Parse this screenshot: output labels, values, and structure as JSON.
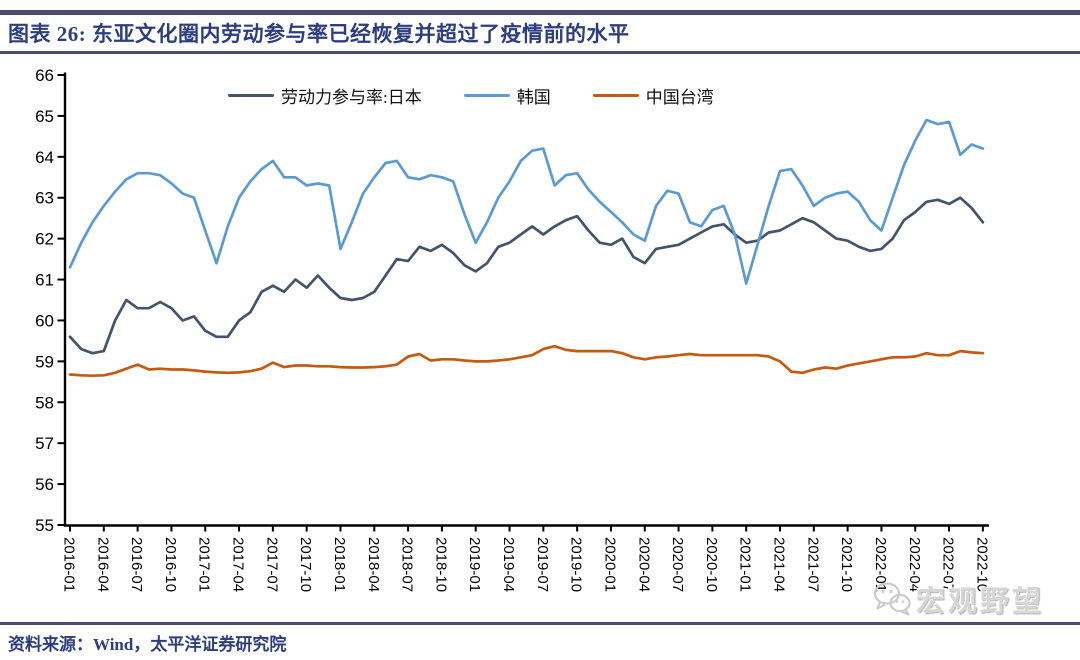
{
  "header": {
    "title": "图表 26:  东亚文化圈内劳动参与率已经恢复并超过了疫情前的水平"
  },
  "footer": {
    "source": "资料来源：Wind，太平洋证券研究院"
  },
  "watermark": {
    "icon": "wechat-icon",
    "text": "宏观野望"
  },
  "colors": {
    "japan": "#44546A",
    "korea": "#5B9BD5",
    "taiwan": "#C55A11",
    "rule": "#4b4b78",
    "title_text": "#2d3e80",
    "axis": "#000000",
    "watermark": "#d6d6d6"
  },
  "chart_data": {
    "type": "line",
    "title": "东亚文化圈内劳动参与率已经恢复并超过了疫情前的水平",
    "x_frequency": "monthly",
    "x_start": "2016-01",
    "x_end": "2022-10",
    "ylim": [
      55,
      66
    ],
    "grid": false,
    "legend_position": "top-center",
    "y_ticks": [
      66,
      65,
      64,
      63,
      62,
      61,
      60,
      59,
      58,
      57,
      56,
      55
    ],
    "x_tick_labels": [
      "2016-01",
      "2016-04",
      "2016-07",
      "2016-10",
      "2017-01",
      "2017-04",
      "2017-07",
      "2017-10",
      "2018-01",
      "2018-04",
      "2018-07",
      "2018-10",
      "2019-01",
      "2019-04",
      "2019-07",
      "2019-10",
      "2020-01",
      "2020-04",
      "2020-07",
      "2020-10",
      "2021-01",
      "2021-04",
      "2021-07",
      "2021-10",
      "2022-01",
      "2022-04",
      "2022-07",
      "2022-10"
    ],
    "series": [
      {
        "name": "劳动力参与率:日本",
        "color_key": "japan",
        "values": [
          59.6,
          59.3,
          59.2,
          59.25,
          60.0,
          60.5,
          60.3,
          60.3,
          60.45,
          60.3,
          60.0,
          60.1,
          59.75,
          59.6,
          59.6,
          60.0,
          60.2,
          60.7,
          60.85,
          60.7,
          61.0,
          60.8,
          61.1,
          60.8,
          60.55,
          60.5,
          60.55,
          60.7,
          61.1,
          61.5,
          61.45,
          61.8,
          61.7,
          61.85,
          61.65,
          61.35,
          61.2,
          61.4,
          61.8,
          61.9,
          62.1,
          62.3,
          62.1,
          62.3,
          62.45,
          62.55,
          62.2,
          61.9,
          61.85,
          62.0,
          61.55,
          61.4,
          61.75,
          61.8,
          61.85,
          62.0,
          62.15,
          62.3,
          62.35,
          62.1,
          61.9,
          61.95,
          62.15,
          62.2,
          62.35,
          62.5,
          62.4,
          62.2,
          62.0,
          61.95,
          61.8,
          61.7,
          61.75,
          62.0,
          62.45,
          62.65,
          62.9,
          62.95,
          62.85,
          63.0,
          62.75,
          62.4
        ]
      },
      {
        "name": "韩国",
        "color_key": "korea",
        "values": [
          61.3,
          61.9,
          62.4,
          62.8,
          63.15,
          63.45,
          63.6,
          63.6,
          63.55,
          63.35,
          63.1,
          63.0,
          62.2,
          61.4,
          62.3,
          63.0,
          63.4,
          63.7,
          63.9,
          63.5,
          63.5,
          63.3,
          63.35,
          63.3,
          61.75,
          62.4,
          63.1,
          63.5,
          63.85,
          63.9,
          63.5,
          63.45,
          63.55,
          63.5,
          63.4,
          62.6,
          61.9,
          62.4,
          63.0,
          63.4,
          63.9,
          64.15,
          64.2,
          63.3,
          63.55,
          63.6,
          63.2,
          62.9,
          62.65,
          62.4,
          62.1,
          61.95,
          62.8,
          63.17,
          63.1,
          62.4,
          62.3,
          62.7,
          62.8,
          62.1,
          60.9,
          61.85,
          62.8,
          63.65,
          63.7,
          63.3,
          62.8,
          63.0,
          63.1,
          63.15,
          62.9,
          62.45,
          62.2,
          63.0,
          63.8,
          64.4,
          64.9,
          64.8,
          64.85,
          64.05,
          64.3,
          64.2
        ]
      },
      {
        "name": "中国台湾",
        "color_key": "taiwan",
        "values": [
          58.68,
          58.66,
          58.65,
          58.66,
          58.72,
          58.82,
          58.92,
          58.8,
          58.82,
          58.8,
          58.8,
          58.78,
          58.75,
          58.73,
          58.72,
          58.73,
          58.76,
          58.82,
          58.97,
          58.86,
          58.9,
          58.9,
          58.88,
          58.88,
          58.86,
          58.85,
          58.85,
          58.86,
          58.88,
          58.92,
          59.12,
          59.18,
          59.02,
          59.05,
          59.05,
          59.02,
          59.0,
          59.0,
          59.02,
          59.05,
          59.1,
          59.15,
          59.3,
          59.37,
          59.28,
          59.25,
          59.25,
          59.25,
          59.25,
          59.2,
          59.1,
          59.05,
          59.1,
          59.12,
          59.15,
          59.18,
          59.15,
          59.15,
          59.15,
          59.15,
          59.15,
          59.15,
          59.12,
          59.0,
          58.75,
          58.72,
          58.8,
          58.85,
          58.82,
          58.9,
          58.95,
          59.0,
          59.05,
          59.1,
          59.1,
          59.12,
          59.2,
          59.15,
          59.15,
          59.25,
          59.22,
          59.2
        ]
      }
    ]
  }
}
